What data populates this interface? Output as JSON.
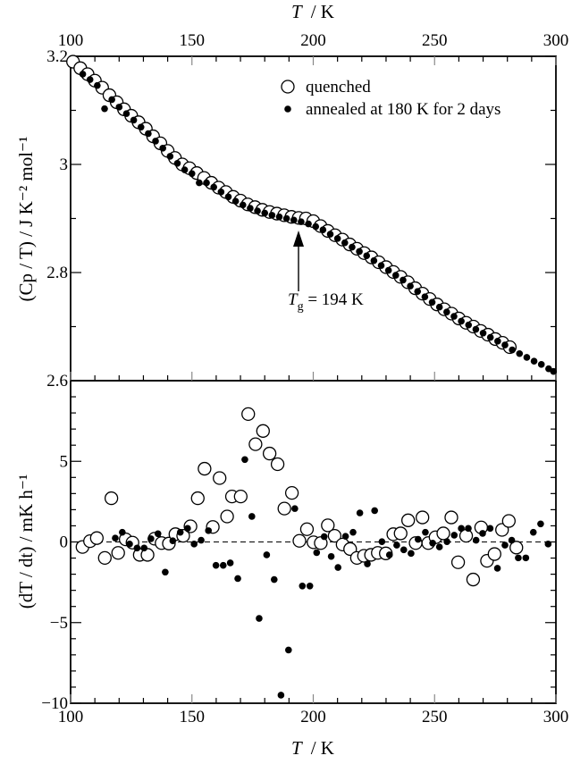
{
  "figure": {
    "top_xlabel_var": "T",
    "top_xlabel_unit": "/  K",
    "bottom_xlabel_var": "T",
    "bottom_xlabel_unit": "/  K",
    "top_ylabel": "(Cp / T)  /  J K⁻² mol⁻¹",
    "bottom_ylabel": "(dT / dt)  /  mK h⁻¹",
    "legend": {
      "quenched": "quenched",
      "annealed": "annealed at 180 K for 2 days"
    },
    "annotation": {
      "var": "T",
      "sub": "g",
      "text": " = 194 K"
    },
    "x_tick_labels": [
      "100",
      "150",
      "200",
      "250",
      "300"
    ],
    "top_y_tick_labels": [
      "3.2",
      "3",
      "2.8",
      "2.6"
    ],
    "bottom_y_tick_labels": [
      "5",
      "0",
      "−5",
      "−10"
    ]
  },
  "chart_data": [
    {
      "type": "scatter",
      "panel": "top",
      "xlabel": "T / K",
      "ylabel": "(Cp / T) / J K^-2 mol^-1",
      "xlim": [
        100,
        300
      ],
      "ylim": [
        2.6,
        3.2
      ],
      "xticks": [
        100,
        150,
        200,
        250,
        300
      ],
      "yticks": [
        2.6,
        2.8,
        3.0,
        3.2
      ],
      "legend_position": "top-right",
      "annotation": "Tg = 194 K, arrow pointing up at T = 194 K",
      "series": [
        {
          "name": "quenched",
          "marker": "open-circle",
          "x": [
            101,
            104,
            107,
            110,
            113,
            116,
            119,
            122,
            125,
            128,
            131,
            134,
            137,
            140,
            143,
            146,
            149,
            152,
            155,
            158,
            161,
            164,
            167,
            170,
            173,
            176,
            179,
            182,
            185,
            188,
            191,
            194,
            197,
            200,
            203,
            206,
            209,
            212,
            215,
            218,
            221,
            224,
            227,
            230,
            233,
            236,
            239,
            242,
            245,
            248,
            251,
            254,
            257,
            260,
            263,
            266,
            269,
            272,
            275,
            278,
            281
          ],
          "y": [
            3.19,
            3.178,
            3.167,
            3.155,
            3.142,
            3.128,
            3.115,
            3.102,
            3.09,
            3.078,
            3.066,
            3.052,
            3.039,
            3.025,
            3.012,
            3.0,
            2.993,
            2.984,
            2.975,
            2.966,
            2.957,
            2.949,
            2.94,
            2.933,
            2.926,
            2.921,
            2.916,
            2.912,
            2.909,
            2.906,
            2.903,
            2.901,
            2.9,
            2.895,
            2.886,
            2.877,
            2.869,
            2.861,
            2.852,
            2.844,
            2.836,
            2.828,
            2.819,
            2.81,
            2.801,
            2.792,
            2.782,
            2.771,
            2.761,
            2.751,
            2.741,
            2.732,
            2.724,
            2.715,
            2.707,
            2.7,
            2.692,
            2.685,
            2.677,
            2.67,
            2.662
          ]
        },
        {
          "name": "annealed at 180 K for 2 days",
          "marker": "filled-circle",
          "x": [
            105,
            108,
            111,
            114,
            117,
            120,
            123,
            126,
            129,
            132,
            135,
            138,
            141,
            144,
            147,
            150,
            153,
            156,
            159,
            162,
            165,
            168,
            171,
            174,
            177,
            180,
            183,
            186,
            189,
            192,
            195,
            198,
            201,
            204,
            207,
            210,
            213,
            216,
            219,
            222,
            225,
            228,
            231,
            234,
            237,
            240,
            243,
            246,
            249,
            252,
            255,
            258,
            261,
            264,
            267,
            270,
            273,
            276,
            279,
            282,
            285,
            288,
            291,
            294,
            297,
            299
          ],
          "y": [
            3.167,
            3.157,
            3.146,
            3.103,
            3.12,
            3.106,
            3.094,
            3.082,
            3.069,
            3.057,
            3.043,
            3.03,
            3.015,
            3.002,
            2.99,
            2.983,
            2.966,
            2.966,
            2.958,
            2.949,
            2.94,
            2.932,
            2.925,
            2.919,
            2.914,
            2.91,
            2.906,
            2.903,
            2.9,
            2.897,
            2.894,
            2.89,
            2.885,
            2.879,
            2.871,
            2.863,
            2.855,
            2.847,
            2.839,
            2.831,
            2.822,
            2.813,
            2.804,
            2.795,
            2.786,
            2.775,
            2.765,
            2.755,
            2.745,
            2.736,
            2.727,
            2.719,
            2.71,
            2.703,
            2.695,
            2.688,
            2.68,
            2.673,
            2.666,
            2.657,
            2.65,
            2.643,
            2.636,
            2.63,
            2.622,
            2.617
          ]
        }
      ]
    },
    {
      "type": "scatter",
      "panel": "bottom",
      "xlabel": "T / K",
      "ylabel": "(dT / dt) / mK h^-1",
      "xlim": [
        100,
        300
      ],
      "ylim": [
        -10,
        10
      ],
      "xticks": [
        100,
        150,
        200,
        250,
        300
      ],
      "yticks": [
        -10,
        -5,
        0,
        5
      ],
      "reference_line": {
        "y": 0,
        "style": "dashed"
      },
      "series": [
        {
          "name": "quenched",
          "marker": "open-circle",
          "x": [
            104.9,
            108,
            110.8,
            114.1,
            116.8,
            119.6,
            122.7,
            125.5,
            128.5,
            131.7,
            134.6,
            137.5,
            140.5,
            143.2,
            146.4,
            149.4,
            152.4,
            155.2,
            158.6,
            161.4,
            164.5,
            166.5,
            170.1,
            173.2,
            176.2,
            179.3,
            182,
            185.3,
            188.1,
            191.2,
            194.3,
            197.4,
            200.1,
            203.1,
            206,
            208.8,
            212.1,
            215.2,
            218,
            220.9,
            223.8,
            226.6,
            229.9,
            233,
            236,
            239.1,
            242.2,
            245,
            247.4,
            250.4,
            253.6,
            256.9,
            259.7,
            263,
            265.9,
            269.2,
            271.6,
            274.7,
            277.8,
            280.6,
            283.7
          ],
          "y": [
            -0.31,
            0.05,
            0.24,
            -0.99,
            2.71,
            -0.68,
            0.16,
            -0.04,
            -0.8,
            -0.8,
            0.2,
            -0.07,
            -0.1,
            0.48,
            0.38,
            0.97,
            2.71,
            4.54,
            0.93,
            3.96,
            1.58,
            2.82,
            2.82,
            7.93,
            6.06,
            6.88,
            5.48,
            4.82,
            2.07,
            3.04,
            0.07,
            0.79,
            -0.02,
            -0.07,
            1.03,
            0.38,
            -0.16,
            -0.44,
            -0.99,
            -0.86,
            -0.8,
            -0.68,
            -0.71,
            0.48,
            0.53,
            1.34,
            -0.07,
            1.52,
            -0.07,
            0.29,
            0.53,
            1.52,
            -1.26,
            0.38,
            -2.33,
            0.9,
            -1.17,
            -0.75,
            0.75,
            1.3,
            -0.35
          ]
        },
        {
          "name": "annealed at 180 K for 2 days",
          "marker": "filled-circle",
          "x": [
            118.4,
            121.3,
            124.3,
            127.4,
            130.3,
            133.1,
            136,
            139,
            142.1,
            145.2,
            148.2,
            150.9,
            153.8,
            156.8,
            159.9,
            162.9,
            165.8,
            168.9,
            171.8,
            174.7,
            177.7,
            180.8,
            183.9,
            186.7,
            189.8,
            192.4,
            195.5,
            198.6,
            201.4,
            204.5,
            207.4,
            210.2,
            213.3,
            216.4,
            219.2,
            222.3,
            225.3,
            228.3,
            231.4,
            234.4,
            237.3,
            240.3,
            243.2,
            246.2,
            249.2,
            252,
            255.1,
            258.1,
            261,
            263.9,
            267.1,
            269.8,
            272.9,
            275.9,
            279,
            281.8,
            284.5,
            287.6,
            290.7,
            293.7,
            296.8
          ],
          "y": [
            0.24,
            0.6,
            -0.13,
            -0.38,
            -0.38,
            0.2,
            0.51,
            -1.87,
            0.07,
            0.6,
            0.84,
            -0.13,
            0.11,
            0.7,
            -1.45,
            -1.45,
            -1.3,
            -2.27,
            5.11,
            1.58,
            -4.74,
            -0.8,
            -2.33,
            -9.5,
            -6.7,
            2.07,
            -2.73,
            -2.73,
            -0.66,
            0.33,
            -0.9,
            -1.58,
            0.35,
            0.6,
            1.8,
            -1.36,
            1.94,
            0.02,
            -0.8,
            -0.2,
            -0.49,
            -0.71,
            0.16,
            0.6,
            -0.07,
            -0.31,
            0.02,
            0.42,
            0.84,
            0.84,
            0.11,
            0.53,
            0.84,
            -1.63,
            -0.2,
            0.11,
            -0.99,
            -0.99,
            0.6,
            1.12,
            -0.13
          ]
        }
      ]
    }
  ]
}
